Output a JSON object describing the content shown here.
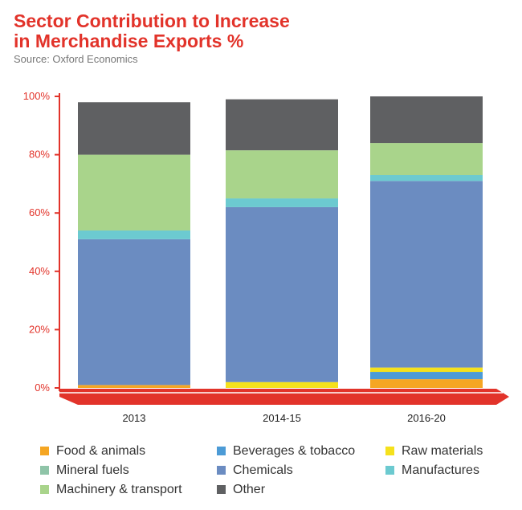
{
  "title_line1": "Sector Contribution to Increase",
  "title_line2": "in Merchandise Exports %",
  "source": "Source: Oxford Economics",
  "chart_data": {
    "type": "bar",
    "stacked": true,
    "title": "Sector Contribution to Increase in Merchandise Exports %",
    "categories": [
      "2013",
      "2014-15",
      "2016-20"
    ],
    "y_ticks": [
      "0%",
      "20%",
      "40%",
      "60%",
      "80%",
      "100%"
    ],
    "ylim": [
      0,
      100
    ],
    "grid": false,
    "legend_position": "bottom",
    "series": [
      {
        "name": "Food & animals",
        "color": "#f5a623",
        "values": [
          1,
          0,
          3
        ]
      },
      {
        "name": "Beverages & tobacco",
        "color": "#4c9bd6",
        "values": [
          0,
          0,
          2.5
        ]
      },
      {
        "name": "Raw materials",
        "color": "#f5e11c",
        "values": [
          0,
          2,
          1.5
        ]
      },
      {
        "name": "Mineral fuels",
        "color": "#8fc4a8",
        "values": [
          0,
          0,
          0
        ]
      },
      {
        "name": "Chemicals",
        "color": "#6b8cc1",
        "values": [
          50,
          60,
          64
        ]
      },
      {
        "name": "Manufactures",
        "color": "#6ccad0",
        "values": [
          3,
          3,
          2
        ]
      },
      {
        "name": "Machinery & transport",
        "color": "#a9d48b",
        "values": [
          26,
          16.5,
          11
        ]
      },
      {
        "name": "Other",
        "color": "#5f6062",
        "values": [
          18,
          17.5,
          16
        ]
      }
    ]
  }
}
